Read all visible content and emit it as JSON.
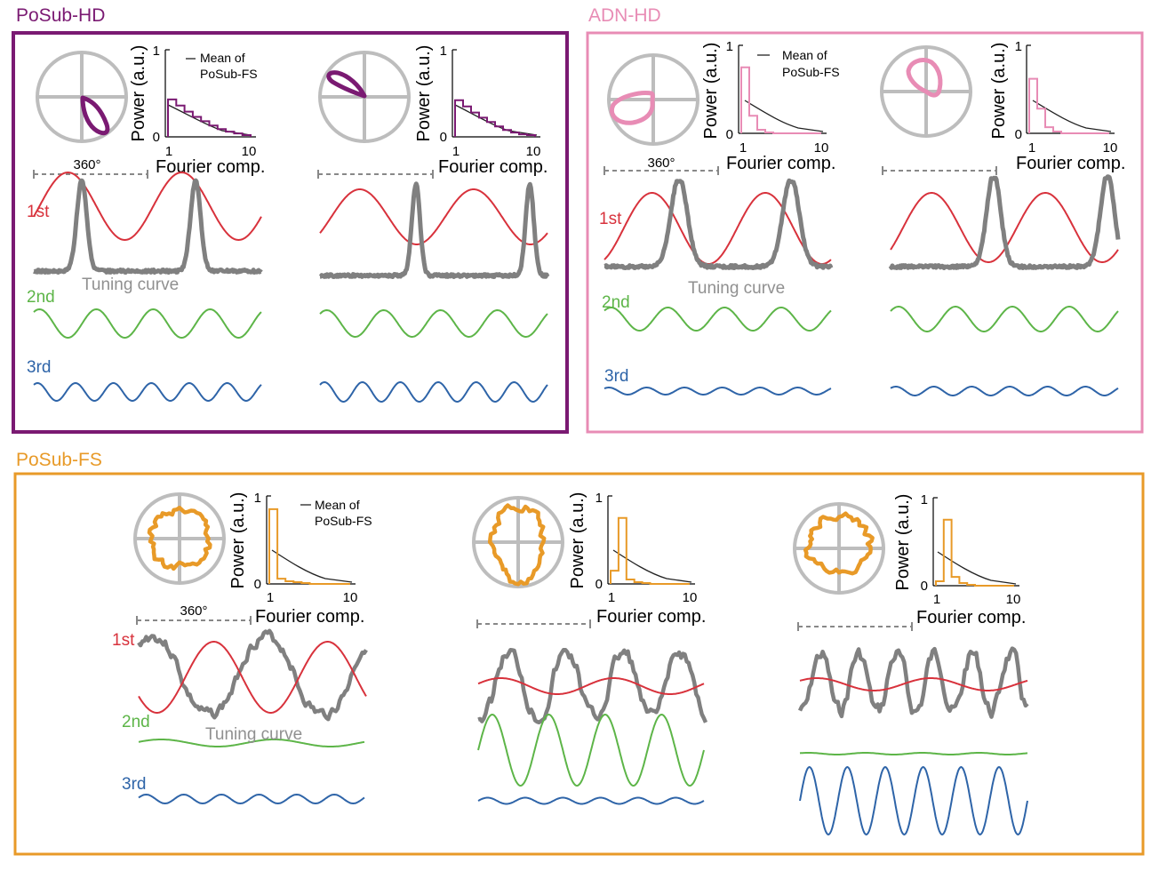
{
  "colors": {
    "posub_hd": "#7a1a72",
    "adn_hd": "#e88cb5",
    "posub_fs": "#e89a28",
    "first": "#d8323c",
    "second": "#5db548",
    "third": "#2e64a8",
    "tuning": "#808080",
    "circle": "#bdbdbd",
    "mean": "#222222"
  },
  "labels": {
    "first": "1st",
    "second": "2nd",
    "third": "3rd",
    "tuning_curve": "Tuning curve",
    "span": "360°",
    "power_axis": "Power (a.u.)",
    "fourier_axis": "Fourier comp.",
    "tick_0": "0",
    "tick_1": "1",
    "tick_10": "10",
    "mean_line1": "Mean of",
    "mean_line2": "PoSub-FS"
  },
  "groups": [
    {
      "key": "posub_hd",
      "title": "PoSub-HD",
      "cells": [
        {
          "power": [
            0.43,
            0.36,
            0.29,
            0.23,
            0.18,
            0.13,
            0.09,
            0.06,
            0.04,
            0.02
          ],
          "harmonics": {
            "first": 0.55,
            "second": 0.5,
            "third": 0.36
          }
        },
        {
          "power": [
            0.42,
            0.35,
            0.28,
            0.22,
            0.17,
            0.12,
            0.08,
            0.05,
            0.03,
            0.02
          ],
          "harmonics": {
            "first": 0.5,
            "second": 0.45,
            "third": 0.38
          }
        }
      ]
    },
    {
      "key": "adn_hd",
      "title": "ADN-HD",
      "cells": [
        {
          "power": [
            0.75,
            0.2,
            0.04,
            0.01,
            0.0,
            0.0,
            0.0,
            0.0,
            0.0,
            0.0
          ],
          "harmonics": {
            "first": 0.85,
            "second": 0.45,
            "third": 0.12
          }
        },
        {
          "power": [
            0.62,
            0.28,
            0.07,
            0.02,
            0.0,
            0.0,
            0.0,
            0.0,
            0.0,
            0.0
          ],
          "harmonics": {
            "first": 0.9,
            "second": 0.48,
            "third": 0.14
          }
        }
      ]
    },
    {
      "key": "posub_fs",
      "title": "PoSub-FS",
      "cells": [
        {
          "power": [
            0.85,
            0.06,
            0.03,
            0.02,
            0.01,
            0.0,
            0.0,
            0.0,
            0.0,
            0.0
          ],
          "harmonics": {
            "first": 0.75,
            "second": 0.08,
            "third": 0.13
          }
        },
        {
          "power": [
            0.15,
            0.75,
            0.05,
            0.02,
            0.01,
            0.0,
            0.0,
            0.0,
            0.0,
            0.0
          ],
          "harmonics": {
            "first": 0.14,
            "second": 1.0,
            "third": 0.09
          }
        },
        {
          "power": [
            0.05,
            0.75,
            0.1,
            0.03,
            0.01,
            0.0,
            0.0,
            0.0,
            0.0,
            0.0
          ],
          "harmonics": {
            "first": 0.13,
            "second": 0.03,
            "third": 0.9
          }
        }
      ]
    }
  ]
}
